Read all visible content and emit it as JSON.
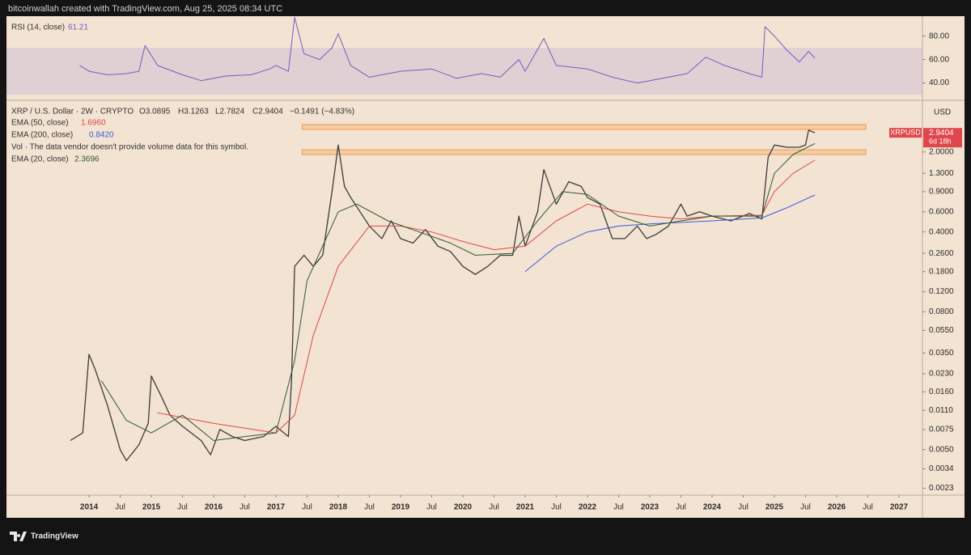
{
  "header": {
    "attribution": "bitcoinwallah created with TradingView.com, Aug 25, 2025 08:34 UTC"
  },
  "footer": {
    "brand": "TradingView"
  },
  "chart_data": {
    "type": "line",
    "symbol": "XRP / U.S. Dollar · 2W · CRYPTO",
    "ohlc": [
      "O3.0895",
      "H3.1263",
      "L2.7824",
      "C2.9404",
      "−0.1491 (−4.83%)"
    ],
    "note": "Vol · The data vendor doesn't provide volume data for this symbol.",
    "currency": "USD",
    "price_tag": {
      "symbol": "XRPUSD",
      "price": "2.9404",
      "countdown": "6d 18h",
      "color": "#e0474c"
    },
    "log_scale": true,
    "xlim": [
      2012.675,
      2027.377
    ],
    "xticks": [
      2014,
      {
        "value": 2014.5,
        "label": "Jul"
      },
      2015,
      {
        "value": 2015.5,
        "label": "Jul"
      },
      2016,
      {
        "value": 2016.5,
        "label": "Jul"
      },
      2017,
      {
        "value": 2017.5,
        "label": "Jul"
      },
      2018,
      {
        "value": 2018.5,
        "label": "Jul"
      },
      2019,
      {
        "value": 2019.5,
        "label": "Jul"
      },
      2020,
      {
        "value": 2020.5,
        "label": "Jul"
      },
      2021,
      {
        "value": 2021.5,
        "label": "Jul"
      },
      2022,
      {
        "value": 2022.5,
        "label": "Jul"
      },
      2023,
      {
        "value": 2023.5,
        "label": "Jul"
      },
      2024,
      {
        "value": 2024.5,
        "label": "Jul"
      },
      2025,
      {
        "value": 2025.5,
        "label": "Jul"
      },
      2026,
      {
        "value": 2026.5,
        "label": "Jul"
      },
      2027
    ],
    "ylim": [
      0.002,
      5.3
    ],
    "yticks": [
      {
        "value": 2,
        "label": "2.0000"
      },
      {
        "value": 1.3,
        "label": "1.3000"
      },
      {
        "value": 0.9,
        "label": "0.9000"
      },
      {
        "value": 0.6,
        "label": "0.6000"
      },
      {
        "value": 0.4,
        "label": "0.4000"
      },
      {
        "value": 0.26,
        "label": "0.2600"
      },
      {
        "value": 0.18,
        "label": "0.1800"
      },
      {
        "value": 0.12,
        "label": "0.1200"
      },
      {
        "value": 0.08,
        "label": "0.0800"
      },
      {
        "value": 0.055,
        "label": "0.0550"
      },
      {
        "value": 0.035,
        "label": "0.0350"
      },
      {
        "value": 0.023,
        "label": "0.0230"
      },
      {
        "value": 0.016,
        "label": "0.0160"
      },
      {
        "value": 0.011,
        "label": "0.0110"
      },
      {
        "value": 0.0075,
        "label": "0.0075"
      },
      {
        "value": 0.005,
        "label": "0.0050"
      },
      {
        "value": 0.0034,
        "label": "0.0034"
      },
      {
        "value": 0.0023,
        "label": "0.0023"
      }
    ],
    "zones": [
      {
        "x": [
          2017.42,
          2026.47
        ],
        "range": [
          3.15,
          3.47
        ],
        "color": "#f2a25c"
      },
      {
        "x": [
          2017.42,
          2026.47
        ],
        "range": [
          1.9,
          2.09
        ],
        "color": "#f2a25c"
      }
    ],
    "series": [
      {
        "name": "XRP / U.S. Dollar",
        "color": "#3b3b3b",
        "x": [
          2013.7,
          2013.9,
          2014.0,
          2014.1,
          2014.3,
          2014.5,
          2014.6,
          2014.8,
          2014.95,
          2015.0,
          2015.15,
          2015.3,
          2015.5,
          2015.8,
          2015.95,
          2016.1,
          2016.3,
          2016.5,
          2016.8,
          2017.0,
          2017.2,
          2017.25,
          2017.3,
          2017.45,
          2017.6,
          2017.75,
          2017.9,
          2018.0,
          2018.1,
          2018.2,
          2018.35,
          2018.5,
          2018.7,
          2018.85,
          2019.0,
          2019.2,
          2019.4,
          2019.6,
          2019.8,
          2020.0,
          2020.2,
          2020.4,
          2020.6,
          2020.8,
          2020.9,
          2021.0,
          2021.2,
          2021.3,
          2021.5,
          2021.7,
          2021.9,
          2022.0,
          2022.2,
          2022.4,
          2022.6,
          2022.8,
          2022.95,
          2023.1,
          2023.3,
          2023.5,
          2023.6,
          2023.8,
          2024.0,
          2024.3,
          2024.6,
          2024.8,
          2024.9,
          2025.0,
          2025.2,
          2025.4,
          2025.5,
          2025.55,
          2025.65
        ],
        "values": [
          0.006,
          0.007,
          0.034,
          0.025,
          0.012,
          0.005,
          0.004,
          0.0055,
          0.0085,
          0.022,
          0.015,
          0.01,
          0.008,
          0.006,
          0.0045,
          0.0075,
          0.0065,
          0.006,
          0.0065,
          0.008,
          0.0065,
          0.02,
          0.2,
          0.25,
          0.2,
          0.25,
          0.9,
          2.3,
          1.0,
          0.8,
          0.6,
          0.45,
          0.35,
          0.5,
          0.35,
          0.32,
          0.42,
          0.3,
          0.27,
          0.2,
          0.17,
          0.2,
          0.25,
          0.25,
          0.55,
          0.3,
          0.6,
          1.4,
          0.7,
          1.1,
          1.0,
          0.8,
          0.7,
          0.35,
          0.35,
          0.45,
          0.35,
          0.38,
          0.45,
          0.7,
          0.55,
          0.6,
          0.55,
          0.5,
          0.58,
          0.52,
          1.8,
          2.3,
          2.2,
          2.2,
          2.3,
          3.1,
          2.9404
        ]
      },
      {
        "name": "EMA (50, close)",
        "legend_value": "1.6960",
        "color": "#e0474c",
        "x": [
          2015.1,
          2016.0,
          2017.0,
          2017.3,
          2017.6,
          2018.0,
          2018.5,
          2019.0,
          2019.5,
          2020.0,
          2020.5,
          2021.0,
          2021.5,
          2022.0,
          2022.5,
          2023.0,
          2023.5,
          2024.0,
          2024.8,
          2025.0,
          2025.3,
          2025.65
        ],
        "values": [
          0.0105,
          0.0085,
          0.007,
          0.01,
          0.05,
          0.2,
          0.45,
          0.45,
          0.4,
          0.33,
          0.28,
          0.3,
          0.5,
          0.7,
          0.6,
          0.55,
          0.52,
          0.55,
          0.56,
          0.9,
          1.3,
          1.696
        ]
      },
      {
        "name": "EMA (200, close)",
        "legend_value": "0.8420",
        "color": "#3a5bd9",
        "x": [
          2021.0,
          2021.5,
          2022.0,
          2022.5,
          2023.0,
          2024.0,
          2024.8,
          2025.2,
          2025.65
        ],
        "values": [
          0.18,
          0.3,
          0.4,
          0.45,
          0.47,
          0.5,
          0.53,
          0.65,
          0.842
        ]
      },
      {
        "name": "EMA (20, close)",
        "legend_value": "2.3696",
        "color": "#2e5a2e",
        "x": [
          2014.2,
          2014.6,
          2015.0,
          2015.5,
          2016.0,
          2016.5,
          2017.0,
          2017.3,
          2017.5,
          2018.0,
          2018.3,
          2018.8,
          2019.3,
          2019.8,
          2020.2,
          2020.8,
          2021.2,
          2021.6,
          2022.0,
          2022.5,
          2023.0,
          2023.5,
          2024.0,
          2024.8,
          2025.0,
          2025.3,
          2025.65
        ],
        "values": [
          0.02,
          0.009,
          0.007,
          0.01,
          0.006,
          0.0065,
          0.007,
          0.03,
          0.15,
          0.6,
          0.7,
          0.5,
          0.4,
          0.32,
          0.25,
          0.26,
          0.5,
          0.9,
          0.85,
          0.55,
          0.45,
          0.5,
          0.55,
          0.55,
          1.3,
          1.9,
          2.3696
        ]
      }
    ],
    "rsi": {
      "name": "RSI (14, close)",
      "legend_value": "61.21",
      "color": "#7e57c2",
      "ylim": [
        28,
        97
      ],
      "yticks": [
        {
          "value": 80,
          "label": "80.00"
        },
        {
          "value": 60,
          "label": "60.00"
        },
        {
          "value": 40,
          "label": "40.00"
        }
      ],
      "band": [
        30,
        70
      ],
      "x": [
        2013.85,
        2014.0,
        2014.3,
        2014.6,
        2014.8,
        2014.9,
        2015.1,
        2015.5,
        2015.8,
        2016.2,
        2016.6,
        2016.9,
        2017.0,
        2017.2,
        2017.3,
        2017.45,
        2017.7,
        2017.9,
        2018.0,
        2018.2,
        2018.5,
        2019.0,
        2019.5,
        2019.9,
        2020.3,
        2020.6,
        2020.9,
        2021.0,
        2021.3,
        2021.5,
        2022.0,
        2022.4,
        2022.8,
        2023.0,
        2023.4,
        2023.6,
        2023.9,
        2024.2,
        2024.6,
        2024.8,
        2024.85,
        2025.0,
        2025.2,
        2025.4,
        2025.55,
        2025.65
      ],
      "values": [
        55,
        50,
        47,
        48,
        50,
        72,
        55,
        47,
        42,
        46,
        47,
        52,
        55,
        50,
        96,
        65,
        60,
        70,
        82,
        55,
        45,
        50,
        52,
        44,
        48,
        45,
        60,
        50,
        78,
        55,
        52,
        45,
        40,
        42,
        46,
        48,
        62,
        55,
        48,
        45,
        88,
        80,
        68,
        58,
        67,
        61.21
      ]
    }
  }
}
